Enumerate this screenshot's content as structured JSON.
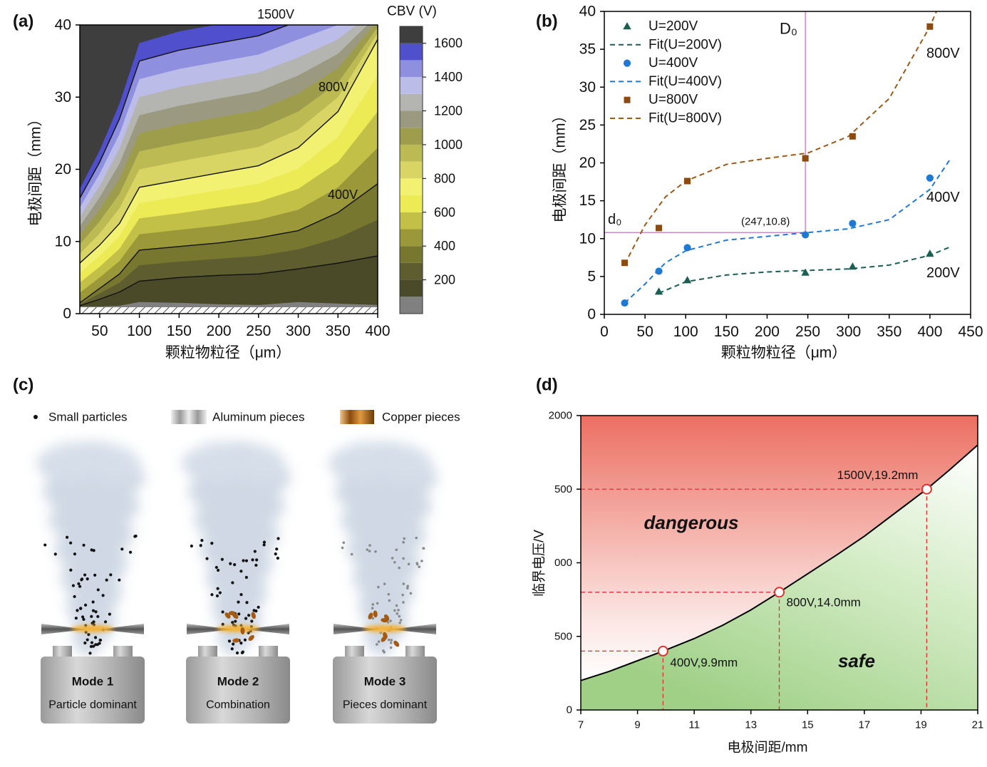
{
  "chart_data": [
    {
      "type": "contour",
      "panel_label": "(a)",
      "x": [
        25,
        50,
        75,
        100,
        150,
        200,
        250,
        300,
        350,
        400
      ],
      "contours": [
        {
          "level": 100,
          "y": [
            1.0,
            1.0,
            1.1,
            1.6,
            1.5,
            1.3,
            1.2,
            1.6,
            1.4,
            1.2
          ]
        },
        {
          "level": 200,
          "y": [
            1.1,
            2.0,
            3.0,
            4.5,
            5.0,
            5.3,
            5.5,
            6.2,
            7.0,
            8.0
          ]
        },
        {
          "level": 300,
          "y": [
            1.3,
            2.8,
            4.3,
            6.7,
            7.2,
            7.6,
            8.0,
            8.9,
            10.5,
            13.0
          ]
        },
        {
          "level": 400,
          "y": [
            1.5,
            3.5,
            5.5,
            8.8,
            9.3,
            9.8,
            10.5,
            11.5,
            14.0,
            18.0
          ]
        },
        {
          "level": 500,
          "y": [
            2.9,
            5.0,
            7.3,
            11.0,
            11.6,
            12.2,
            13.0,
            14.4,
            17.5,
            23.0
          ]
        },
        {
          "level": 600,
          "y": [
            4.3,
            6.5,
            9.0,
            13.2,
            13.9,
            14.7,
            15.5,
            17.3,
            21.0,
            28.0
          ]
        },
        {
          "level": 700,
          "y": [
            5.6,
            8.0,
            10.8,
            15.3,
            16.2,
            17.1,
            18.0,
            20.1,
            24.5,
            33.0
          ]
        },
        {
          "level": 800,
          "y": [
            7.0,
            9.5,
            12.5,
            17.5,
            18.5,
            19.5,
            20.5,
            23.0,
            28.0,
            38.0
          ]
        },
        {
          "level": 900,
          "y": [
            8.3,
            11.1,
            14.6,
            20.0,
            21.1,
            22.1,
            23.1,
            25.5,
            30.0,
            38.9
          ]
        },
        {
          "level": 1000,
          "y": [
            9.6,
            12.8,
            16.6,
            22.5,
            23.6,
            24.6,
            25.6,
            28.0,
            32.0,
            39.7
          ]
        },
        {
          "level": 1100,
          "y": [
            10.9,
            14.4,
            18.7,
            25.0,
            26.2,
            27.2,
            28.2,
            30.5,
            34.0,
            40.6
          ]
        },
        {
          "level": 1200,
          "y": [
            12.1,
            16.1,
            20.8,
            27.5,
            28.8,
            29.8,
            30.8,
            33.0,
            36.0,
            41.4
          ]
        },
        {
          "level": 1300,
          "y": [
            13.4,
            17.7,
            22.9,
            30.0,
            31.4,
            32.4,
            33.4,
            35.5,
            38.0,
            42.3
          ]
        },
        {
          "level": 1400,
          "y": [
            14.7,
            19.4,
            24.9,
            32.5,
            33.9,
            34.9,
            35.9,
            38.0,
            40.0,
            43.1
          ]
        },
        {
          "level": 1500,
          "y": [
            16.0,
            21.0,
            27.0,
            35.0,
            36.5,
            37.5,
            38.5,
            40.5,
            42.0,
            44.0
          ]
        },
        {
          "level": 1600,
          "y": [
            17.3,
            22.6,
            29.1,
            37.5,
            39.1,
            40.1,
            41.1,
            43.0,
            44.0,
            44.9
          ]
        }
      ],
      "colors": [
        "#808080",
        "#4a4a28",
        "#5e5d30",
        "#78772f",
        "#9a9838",
        "#c2c046",
        "#ecea55",
        "#f3f172",
        "#d8d565",
        "#bcba52",
        "#9e9d4c",
        "#9b9a80",
        "#b4b4b0",
        "#bcbce8",
        "#8f8fe0",
        "#5050cc",
        "#3e3e3e"
      ],
      "line_levels": [
        200,
        400,
        800,
        1500
      ],
      "annotations": [
        "1500V",
        "800V",
        "400V"
      ],
      "xlabel": "颗粒物粒径（μm）",
      "ylabel": "电极间距（mm）",
      "xlim": [
        25,
        400
      ],
      "xticks": [
        50,
        100,
        150,
        200,
        250,
        300,
        350,
        400
      ],
      "ylim": [
        0,
        40
      ],
      "yticks": [
        0,
        10,
        20,
        30,
        40
      ],
      "colorbar_label": "CBV (V)",
      "colorbar_lim": [
        0,
        1700
      ],
      "colorbar_ticks": [
        200,
        400,
        600,
        800,
        1000,
        1200,
        1400,
        1600
      ]
    },
    {
      "type": "scatter",
      "panel_label": "(b)",
      "series": [
        {
          "name": "U=200V",
          "kind": "marker",
          "marker": "triangle",
          "color": "#1b5e52",
          "x": [
            67,
            102,
            247,
            305,
            400
          ],
          "values": [
            3.0,
            4.5,
            5.5,
            6.3,
            8.0
          ]
        },
        {
          "name": "Fit(U=200V)",
          "kind": "fit",
          "color": "#1b5e52",
          "x": [
            67,
            100,
            150,
            200,
            250,
            300,
            350,
            400,
            425
          ],
          "values": [
            2.8,
            4.3,
            5.2,
            5.6,
            5.8,
            6.0,
            6.5,
            7.8,
            8.9
          ]
        },
        {
          "name": "U=400V",
          "kind": "marker",
          "marker": "circle",
          "color": "#1f78d1",
          "x": [
            25,
            67,
            102,
            247,
            305,
            400
          ],
          "values": [
            1.5,
            5.7,
            8.8,
            10.5,
            12.0,
            18.0
          ]
        },
        {
          "name": "Fit(U=400V)",
          "kind": "fit",
          "color": "#1f78d1",
          "x": [
            25,
            50,
            75,
            100,
            150,
            200,
            250,
            300,
            350,
            400,
            425
          ],
          "values": [
            1.5,
            4.0,
            6.8,
            8.4,
            9.8,
            10.3,
            10.8,
            11.3,
            12.5,
            16.5,
            20.5
          ]
        },
        {
          "name": "U=800V",
          "kind": "marker",
          "marker": "square",
          "color": "#8b4a12",
          "x": [
            25,
            67,
            102,
            247,
            305,
            400
          ],
          "values": [
            6.8,
            11.4,
            17.6,
            20.6,
            23.5,
            38.0
          ]
        },
        {
          "name": "Fit(U=800V)",
          "kind": "fit",
          "color": "#9a5a1a",
          "x": [
            25,
            50,
            75,
            100,
            150,
            200,
            250,
            300,
            350,
            400,
            408
          ],
          "values": [
            6.6,
            11.8,
            15.5,
            17.6,
            19.8,
            20.6,
            21.3,
            23.5,
            28.5,
            38.0,
            40.0
          ]
        }
      ],
      "legend": "upper left",
      "reference_lines": {
        "x": 247,
        "y": 10.8,
        "color": "#cc88cc"
      },
      "annotations": [
        {
          "text": "800V",
          "color": "#e32b1f"
        },
        {
          "text": "400V",
          "color": "#1f78d1"
        },
        {
          "text": "200V",
          "color": "#1b5e52"
        },
        {
          "text": "D₀",
          "color": "#222222"
        },
        {
          "text": "d₀",
          "color": "#222222"
        },
        {
          "text": "(247,10.8)",
          "color": "#1f78d1"
        }
      ],
      "xlabel": "颗粒物粒径（μm）",
      "ylabel": "电极间距（mm）",
      "xlim": [
        0,
        450
      ],
      "xticks": [
        0,
        50,
        100,
        150,
        200,
        250,
        300,
        350,
        400,
        450
      ],
      "ylim": [
        0,
        40
      ],
      "yticks": [
        0,
        5,
        10,
        15,
        20,
        25,
        30,
        35,
        40
      ]
    },
    {
      "type": "line",
      "panel_label": "(d)",
      "x": [
        7,
        8,
        9.9,
        11,
        12,
        13,
        14,
        16,
        17,
        19.2,
        20,
        21
      ],
      "values": [
        200,
        262,
        400,
        485,
        575,
        680,
        800,
        1050,
        1180,
        1500,
        1630,
        1800
      ],
      "color": "#000000",
      "points": {
        "x": [
          9.9,
          14.0,
          19.2
        ],
        "values": [
          400,
          800,
          1500
        ],
        "labels": [
          "400V,9.9mm",
          "800V,14.0mm",
          "1500V,19.2mm"
        ],
        "color": "#e03030"
      },
      "regions": [
        {
          "text": "dangerous",
          "color": "#dd3333"
        },
        {
          "text": "safe",
          "color": "#22a020"
        }
      ],
      "xlabel": "电极间距/mm",
      "ylabel": "临界电压/V",
      "xlim": [
        7,
        21
      ],
      "xticks": [
        7,
        9,
        11,
        13,
        15,
        17,
        19,
        21
      ],
      "ylim": [
        0,
        2000
      ],
      "yticks": [
        0,
        500,
        {
          "value": 1000,
          "label": "000"
        },
        {
          "value": 1500,
          "label": "500"
        },
        2000
      ]
    }
  ],
  "illustration": {
    "panel_label": "(c)",
    "legend": [
      "Small particles",
      "Aluminum pieces",
      "Copper pieces"
    ],
    "modes": [
      {
        "title": "Mode 1",
        "subtitle": "Particle dominant"
      },
      {
        "title": "Mode 2",
        "subtitle": "Combination"
      },
      {
        "title": "Mode 3",
        "subtitle": "Pieces dominant"
      }
    ]
  }
}
